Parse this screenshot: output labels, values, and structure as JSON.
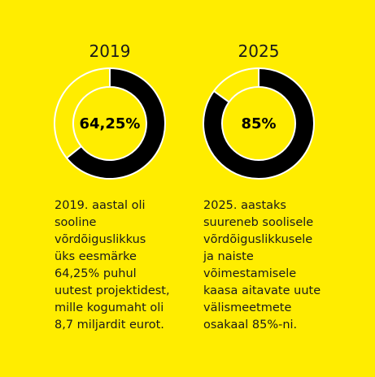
{
  "colors": {
    "background": "#FFED00",
    "filled": "#000000",
    "remaining": "#FFED00",
    "border": "#FFFFFF"
  },
  "chart_data": [
    {
      "type": "pie",
      "donut": true,
      "title": "2019",
      "value_percent": 64.25,
      "center_label": "64,25%",
      "slices": [
        {
          "value": 64.25,
          "color": "#000000"
        },
        {
          "value": 35.75,
          "color": "#FFED00"
        }
      ],
      "description": [
        "2019. aastal oli",
        "sooline",
        "võrdõiguslikkus",
        "üks eesmärke",
        "64,25% puhul",
        "uutest projektidest,",
        "mille kogumaht oli",
        "8,7 miljardit eurot."
      ]
    },
    {
      "type": "pie",
      "donut": true,
      "title": "2025",
      "value_percent": 85,
      "center_label": "85%",
      "slices": [
        {
          "value": 85,
          "color": "#000000"
        },
        {
          "value": 15,
          "color": "#FFED00"
        }
      ],
      "description": [
        "2025. aastaks",
        "suureneb soolisele",
        "võrdõiguslikkusele",
        "ja naiste",
        "võimestamisele",
        "kaasa aitavate uute",
        "välismeetmete",
        "osakaal 85%-ni."
      ]
    }
  ]
}
